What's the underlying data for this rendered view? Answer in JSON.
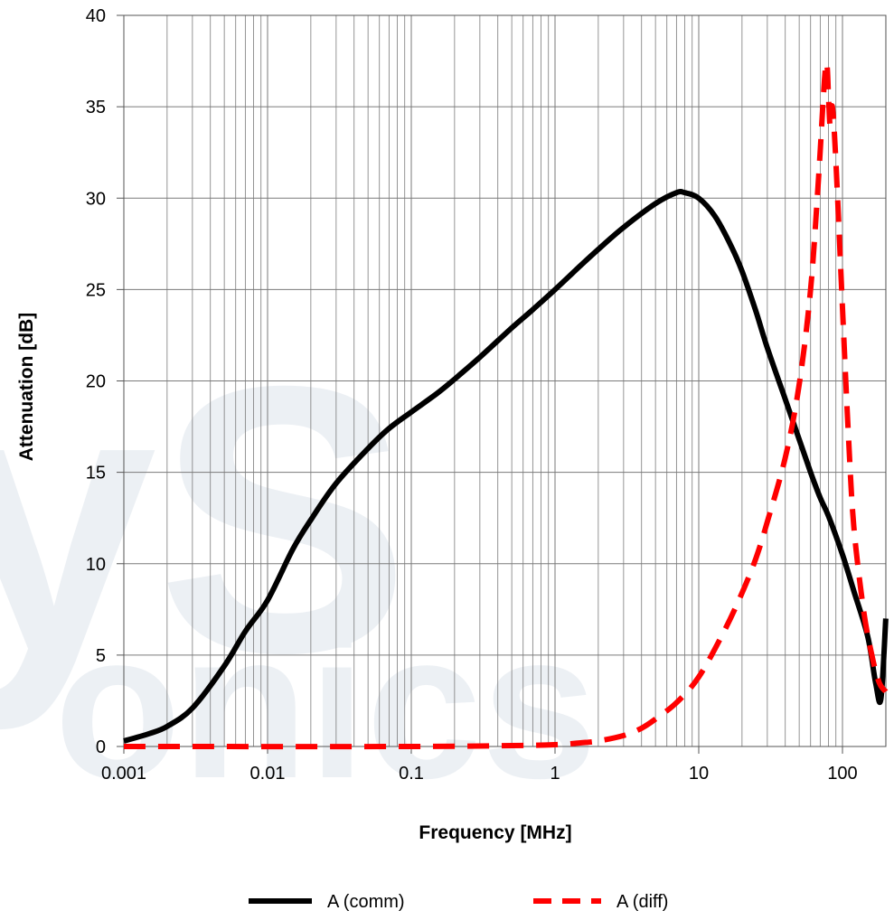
{
  "chart_data": {
    "type": "line",
    "xlabel": "Frequency [MHz]",
    "ylabel": "Attenuation [dB]",
    "xscale": "log",
    "xlim": [
      0.001,
      200
    ],
    "ylim": [
      0,
      40
    ],
    "x_ticks": [
      "0.001",
      "0.01",
      "0.1",
      "1",
      "10",
      "100"
    ],
    "y_ticks": [
      "0",
      "5",
      "10",
      "15",
      "20",
      "25",
      "30",
      "35",
      "40"
    ],
    "grid": true,
    "legend_position": "bottom",
    "series": [
      {
        "name": "A (comm)",
        "color": "#000000",
        "style": "solid",
        "points": [
          [
            0.001,
            0.3
          ],
          [
            0.0015,
            0.7
          ],
          [
            0.002,
            1.1
          ],
          [
            0.003,
            2.1
          ],
          [
            0.005,
            4.4
          ],
          [
            0.007,
            6.3
          ],
          [
            0.01,
            8.0
          ],
          [
            0.015,
            10.8
          ],
          [
            0.02,
            12.4
          ],
          [
            0.03,
            14.4
          ],
          [
            0.05,
            16.3
          ],
          [
            0.07,
            17.4
          ],
          [
            0.1,
            18.3
          ],
          [
            0.15,
            19.3
          ],
          [
            0.2,
            20.1
          ],
          [
            0.3,
            21.3
          ],
          [
            0.5,
            22.9
          ],
          [
            0.7,
            23.9
          ],
          [
            1,
            25.0
          ],
          [
            1.5,
            26.3
          ],
          [
            2,
            27.2
          ],
          [
            3,
            28.4
          ],
          [
            5,
            29.7
          ],
          [
            7,
            30.3
          ],
          [
            8,
            30.3
          ],
          [
            10,
            30.0
          ],
          [
            13,
            29.0
          ],
          [
            17,
            27.3
          ],
          [
            20,
            26.0
          ],
          [
            25,
            23.8
          ],
          [
            30,
            21.8
          ],
          [
            40,
            19.0
          ],
          [
            50,
            16.8
          ],
          [
            60,
            15.0
          ],
          [
            70,
            13.6
          ],
          [
            80,
            12.6
          ],
          [
            100,
            10.5
          ],
          [
            120,
            8.5
          ],
          [
            150,
            6.0
          ],
          [
            170,
            3.5
          ],
          [
            185,
            2.6
          ],
          [
            200,
            7.0
          ]
        ]
      },
      {
        "name": "A (diff)",
        "color": "#ff0000",
        "style": "dashed",
        "points": [
          [
            0.001,
            0.0
          ],
          [
            0.1,
            0.0
          ],
          [
            0.5,
            0.05
          ],
          [
            1,
            0.1
          ],
          [
            1.5,
            0.2
          ],
          [
            2,
            0.3
          ],
          [
            3,
            0.6
          ],
          [
            4,
            1.0
          ],
          [
            5,
            1.5
          ],
          [
            7,
            2.4
          ],
          [
            10,
            3.8
          ],
          [
            15,
            6.3
          ],
          [
            20,
            8.4
          ],
          [
            25,
            10.3
          ],
          [
            30,
            12.3
          ],
          [
            40,
            15.8
          ],
          [
            50,
            19.8
          ],
          [
            60,
            25.0
          ],
          [
            68,
            31.0
          ],
          [
            75,
            36.5
          ],
          [
            78,
            37.3
          ],
          [
            80,
            35.5
          ],
          [
            82,
            34.0
          ],
          [
            85,
            35.0
          ],
          [
            90,
            32.0
          ],
          [
            100,
            24.0
          ],
          [
            110,
            17.0
          ],
          [
            120,
            12.0
          ],
          [
            140,
            7.5
          ],
          [
            160,
            5.0
          ],
          [
            180,
            3.5
          ],
          [
            200,
            3.0
          ]
        ]
      }
    ]
  }
}
